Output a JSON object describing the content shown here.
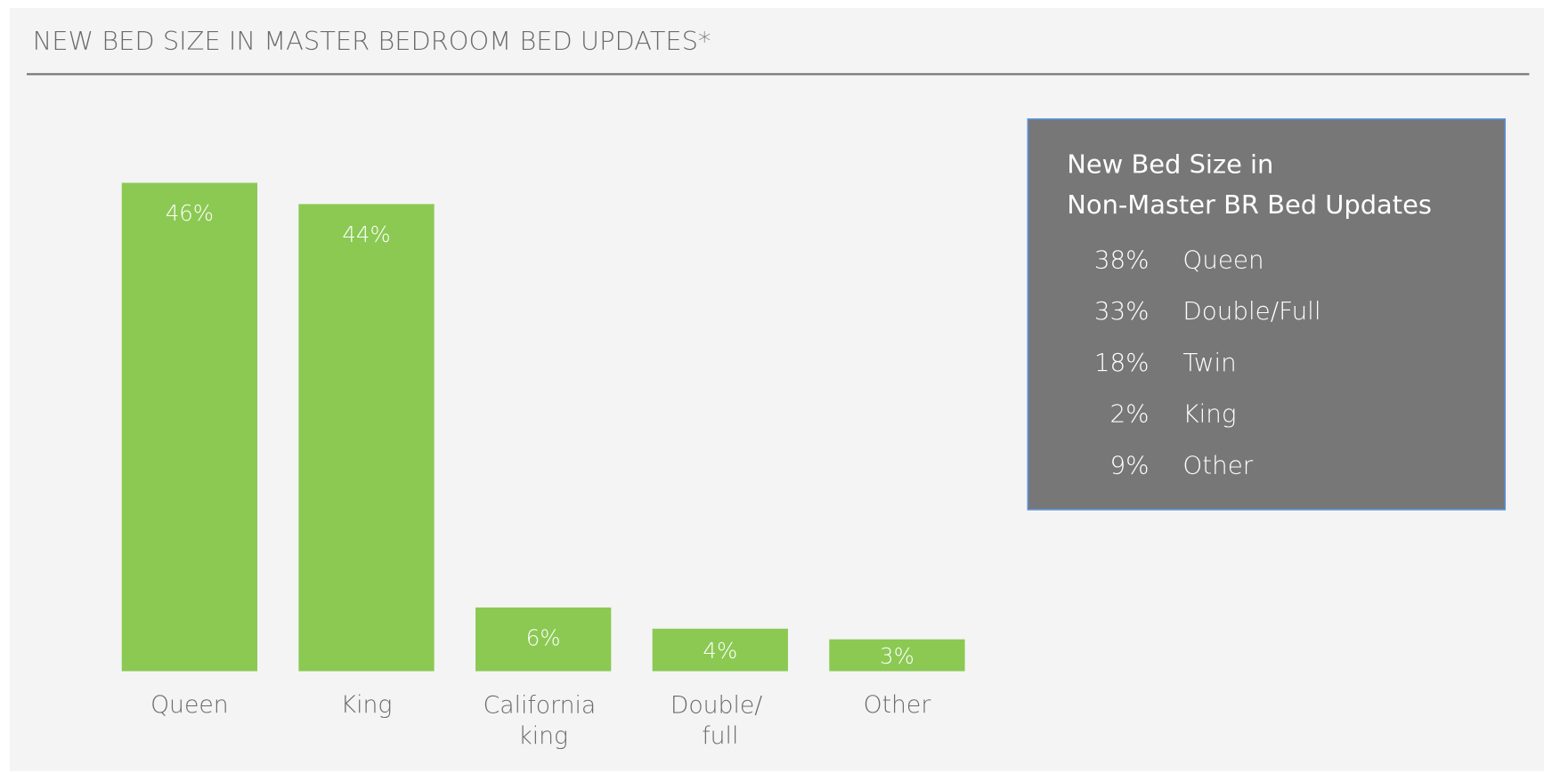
{
  "chart_data": {
    "type": "bar",
    "title": "NEW BED SIZE IN MASTER BEDROOM BED UPDATES*",
    "categories": [
      "Queen",
      "King",
      "California king",
      "Double/ full",
      "Other"
    ],
    "values": [
      46,
      44,
      6,
      4,
      3
    ],
    "value_labels": [
      "46%",
      "44%",
      "6%",
      "4%",
      "3%"
    ],
    "color": "#8bc953",
    "ylim": [
      0,
      50
    ]
  },
  "inset": {
    "title_lines": [
      "New Bed Size in",
      "Non-Master BR Bed Updates"
    ],
    "rows": [
      {
        "value": "38%",
        "name": "Queen"
      },
      {
        "value": "33%",
        "name": "Double/Full"
      },
      {
        "value": "18%",
        "name": "Twin"
      },
      {
        "value": "2%",
        "name": "King"
      },
      {
        "value": "9%",
        "name": "Other"
      }
    ]
  }
}
